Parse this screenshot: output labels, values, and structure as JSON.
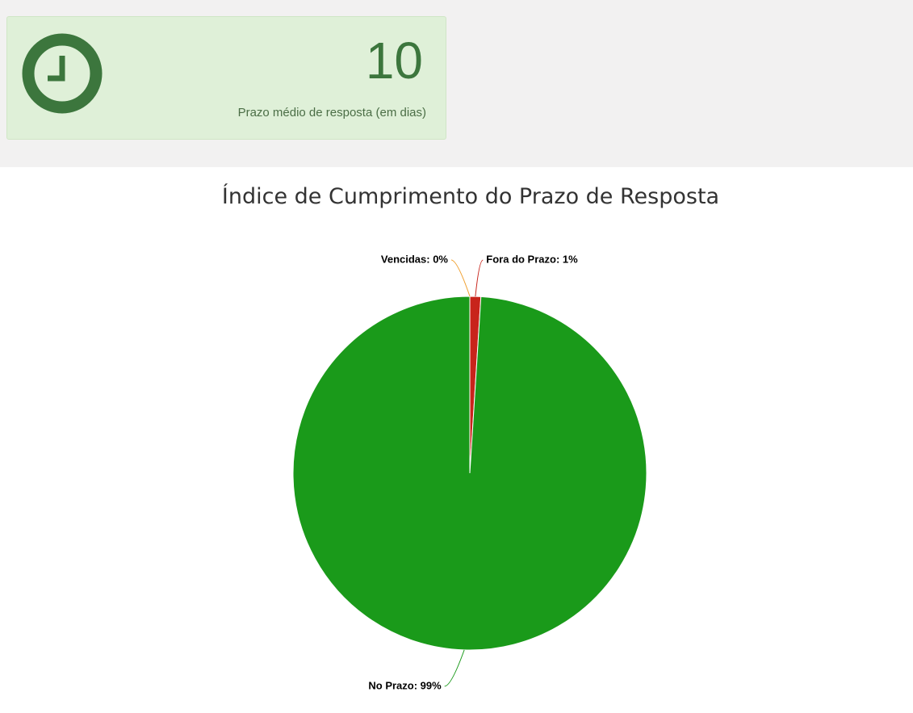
{
  "card": {
    "value": 10,
    "label": "Prazo médio de resposta (em dias)"
  },
  "chart_data": {
    "type": "pie",
    "title": "Índice de Cumprimento do Prazo de Resposta",
    "values": [
      0,
      1,
      99
    ],
    "value_labels": [
      "Vencidas: 0%",
      "Fora do Prazo: 1%",
      "No Prazo: 99%"
    ],
    "colors": [
      "#f0a030",
      "#c8241b",
      "#1a9a1a"
    ]
  }
}
